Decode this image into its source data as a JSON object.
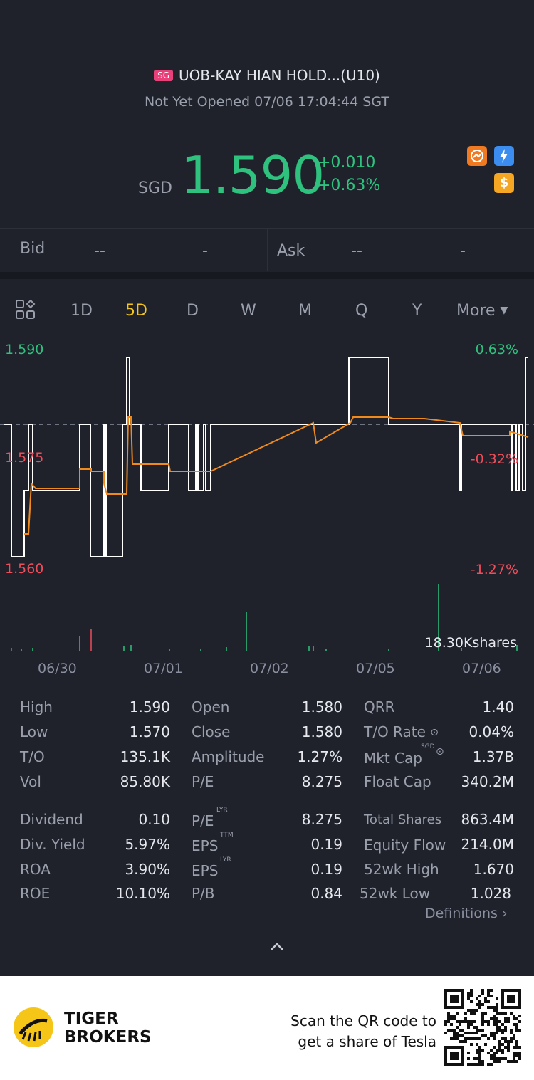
{
  "header": {
    "exchange_badge": "SG",
    "title": "UOB-KAY HIAN HOLD...(U10)",
    "status": "Not Yet Opened 07/06 17:04:44 SGT",
    "currency": "SGD",
    "price": "1.590",
    "change": "+0.010",
    "change_pct": "+0.63%",
    "price_color": "#2ec27e",
    "icons": [
      "rocket-icon",
      "lightning-icon",
      "dollar-icon"
    ]
  },
  "quote": {
    "bid_label": "Bid",
    "bid_price": "--",
    "bid_size": "-",
    "ask_label": "Ask",
    "ask_price": "--",
    "ask_size": "-"
  },
  "tabs": {
    "items": [
      "1D",
      "5D",
      "D",
      "W",
      "M",
      "Q",
      "Y"
    ],
    "active": "5D",
    "more": "More"
  },
  "chart": {
    "y_top": "1.590",
    "y_mid": "1.575",
    "y_bottom": "1.560",
    "pct_top": "0.63%",
    "pct_mid": "-0.32%",
    "pct_bottom": "-1.27%",
    "volume_label": "18.30Kshares",
    "dates": [
      "06/30",
      "07/01",
      "07/02",
      "07/05",
      "07/06"
    ]
  },
  "chart_data": {
    "type": "line",
    "x": [
      "06/30",
      "07/01",
      "07/02",
      "07/05",
      "07/06"
    ],
    "ylim": [
      1.56,
      1.59
    ],
    "series": [],
    "volume_max": "18.30Kshares"
  },
  "stats": {
    "col1": [
      {
        "label": "High",
        "value": "1.590"
      },
      {
        "label": "Low",
        "value": "1.570"
      },
      {
        "label": "T/O",
        "value": "135.1K"
      },
      {
        "label": "Vol",
        "value": "85.80K"
      }
    ],
    "col2": [
      {
        "label": "Open",
        "value": "1.580"
      },
      {
        "label": "Close",
        "value": "1.580"
      },
      {
        "label": "Amplitude",
        "value": "1.27%"
      },
      {
        "label": "P/E",
        "value": "8.275"
      }
    ],
    "col3": [
      {
        "label": "QRR",
        "value": "1.40"
      },
      {
        "label": "T/O Rate",
        "value": "0.04%"
      },
      {
        "label": "Mkt Cap",
        "value": "1.37B",
        "sup": "SGD"
      },
      {
        "label": "Float Cap",
        "value": "340.2M"
      }
    ],
    "col1b": [
      {
        "label": "Dividend",
        "value": "0.10"
      },
      {
        "label": "Div. Yield",
        "value": "5.97%"
      },
      {
        "label": "ROA",
        "value": "3.90%"
      },
      {
        "label": "ROE",
        "value": "10.10%"
      }
    ],
    "col2b": [
      {
        "label": "P/E",
        "value": "8.275",
        "sup": "LYR"
      },
      {
        "label": "EPS",
        "value": "0.19",
        "sup": "TTM"
      },
      {
        "label": "EPS",
        "value": "0.19",
        "sup": "LYR"
      },
      {
        "label": "P/B",
        "value": "0.84"
      }
    ],
    "col3b": [
      {
        "label": "Total Shares",
        "value": "863.4M"
      },
      {
        "label": "Equity Flow",
        "value": "214.0M"
      },
      {
        "label": "52wk High",
        "value": "1.670"
      },
      {
        "label": "52wk Low",
        "value": "1.028"
      }
    ],
    "definitions": "Definitions"
  },
  "footer": {
    "brand_line1": "TIGER",
    "brand_line2": "BROKERS",
    "promo_line1": "Scan the QR code to",
    "promo_line2": "get a share of Tesla"
  }
}
